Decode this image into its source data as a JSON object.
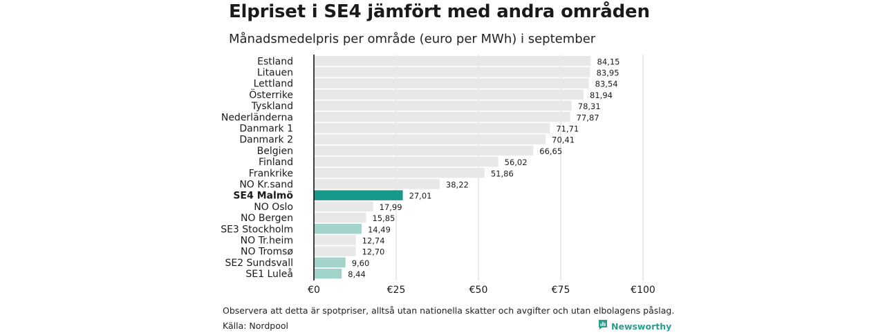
{
  "brand": {
    "name": "Newsworthy",
    "icon": "newsworthy-logo-icon",
    "color": "#2a9d8f"
  },
  "footer": {
    "note": "Observera att detta är spotpriser, alltså utan nationella skatter och avgifter och utan elbolagens påslag.",
    "source": "Källa: Nordpool"
  },
  "colors": {
    "default": "#e8e8e8",
    "highlight": "#16998a",
    "swedish": "#a3d4cb",
    "grid": "#d6d6d6",
    "axis": "#000000"
  },
  "chart_data": {
    "type": "bar",
    "orientation": "horizontal",
    "title": "Elpriset i SE4 jämfört med andra områden",
    "subtitle": "Månadsmedelpris per område (euro per MWh) i september",
    "xlim": [
      0,
      100
    ],
    "x_ticks": [
      {
        "value": 0,
        "label": "€0"
      },
      {
        "value": 25,
        "label": "€25"
      },
      {
        "value": 50,
        "label": "€50"
      },
      {
        "value": 75,
        "label": "€75"
      },
      {
        "value": 100,
        "label": "€100"
      }
    ],
    "grid": true,
    "legend": "none",
    "bars": [
      {
        "category": "Estland",
        "value": 84.15,
        "label": "84,15",
        "group": "default"
      },
      {
        "category": "Litauen",
        "value": 83.95,
        "label": "83,95",
        "group": "default"
      },
      {
        "category": "Lettland",
        "value": 83.54,
        "label": "83,54",
        "group": "default"
      },
      {
        "category": "Österrike",
        "value": 81.94,
        "label": "81,94",
        "group": "default"
      },
      {
        "category": "Tyskland",
        "value": 78.31,
        "label": "78,31",
        "group": "default"
      },
      {
        "category": "Nederländerna",
        "value": 77.87,
        "label": "77,87",
        "group": "default"
      },
      {
        "category": "Danmark 1",
        "value": 71.71,
        "label": "71,71",
        "group": "default"
      },
      {
        "category": "Danmark 2",
        "value": 70.41,
        "label": "70,41",
        "group": "default"
      },
      {
        "category": "Belgien",
        "value": 66.65,
        "label": "66,65",
        "group": "default"
      },
      {
        "category": "Finland",
        "value": 56.02,
        "label": "56,02",
        "group": "default"
      },
      {
        "category": "Frankrike",
        "value": 51.86,
        "label": "51,86",
        "group": "default"
      },
      {
        "category": "NO Kr.sand",
        "value": 38.22,
        "label": "38,22",
        "group": "default"
      },
      {
        "category": "SE4 Malmö",
        "value": 27.01,
        "label": "27,01",
        "group": "highlight"
      },
      {
        "category": "NO Oslo",
        "value": 17.99,
        "label": "17,99",
        "group": "default"
      },
      {
        "category": "NO Bergen",
        "value": 15.85,
        "label": "15,85",
        "group": "default"
      },
      {
        "category": "SE3 Stockholm",
        "value": 14.49,
        "label": "14,49",
        "group": "swedish"
      },
      {
        "category": "NO Tr.heim",
        "value": 12.74,
        "label": "12,74",
        "group": "default"
      },
      {
        "category": "NO Tromsø",
        "value": 12.7,
        "label": "12,70",
        "group": "default"
      },
      {
        "category": "SE2 Sundsvall",
        "value": 9.6,
        "label": "9,60",
        "group": "swedish"
      },
      {
        "category": "SE1 Luleå",
        "value": 8.44,
        "label": "8,44",
        "group": "swedish"
      }
    ]
  }
}
